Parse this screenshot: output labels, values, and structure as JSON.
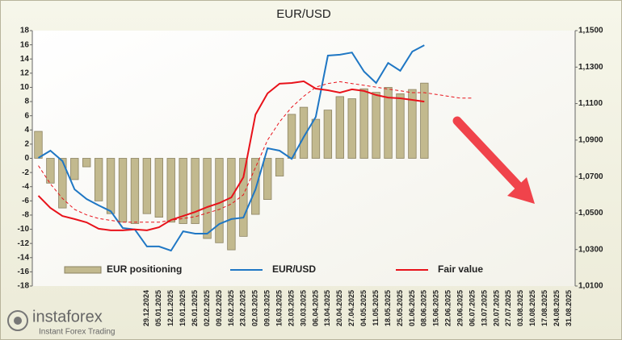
{
  "chart_data": {
    "type": "bar",
    "title": "EUR/USD",
    "categories": [
      null,
      null,
      null,
      null,
      null,
      null,
      null,
      null,
      null,
      "29.12.2024",
      "05.01.2025",
      "12.01.2025",
      "19.01.2025",
      "26.01.2025",
      "02.02.2025",
      "09.02.2025",
      "16.02.2025",
      "23.02.2025",
      "02.03.2025",
      "09.03.2025",
      "16.03.2025",
      "23.03.2025",
      "30.03.2025",
      "06.04.2025",
      "13.04.2025",
      "20.04.2025",
      "27.04.2025",
      "04.05.2025",
      "11.05.2025",
      "18.05.2025",
      "25.05.2025",
      "01.06.2025",
      "08.06.2025",
      "15.06.2025",
      "22.06.2025",
      "29.06.2025",
      "06.07.2025",
      "13.07.2025",
      "20.07.2025",
      "27.07.2025",
      "03.08.2025",
      "10.08.2025",
      "17.08.2025",
      "24.08.2025",
      "31.08.2025"
    ],
    "series": [
      {
        "name": "EUR positioning",
        "type": "bar",
        "color": "#c2b98e",
        "axis": "y",
        "values": [
          3.8,
          -3.5,
          -7,
          -3,
          -1.2,
          -6,
          -7.8,
          -9,
          -9.2,
          -7.8,
          -8.3,
          -9,
          -9.2,
          -9.2,
          -11.3,
          -11.9,
          -12.9,
          -11,
          -7.9,
          -5.8,
          -2.5,
          6.2,
          7.2,
          5.5,
          6.8,
          8.7,
          8.4,
          9.8,
          9.3,
          10,
          9.1,
          9.7,
          10.6,
          null,
          null,
          null,
          null,
          null,
          null,
          null,
          null,
          null,
          null,
          null,
          null
        ]
      },
      {
        "name": "EUR/USD",
        "type": "line",
        "color": "#1f77c4",
        "axis": "y2",
        "values": [
          1.0802,
          1.0842,
          1.0785,
          1.063,
          1.0577,
          1.0542,
          1.051,
          1.0418,
          1.041,
          1.0317,
          1.0317,
          1.0294,
          1.04,
          1.0387,
          1.0387,
          1.044,
          1.0467,
          1.0475,
          1.063,
          1.0855,
          1.0842,
          1.0797,
          1.0917,
          1.1027,
          1.1363,
          1.1368,
          1.138,
          1.1275,
          1.1213,
          1.1323,
          1.128,
          1.1385,
          1.142,
          null,
          null,
          null,
          null,
          null,
          null,
          null,
          null,
          null,
          null,
          null,
          null
        ]
      },
      {
        "name": "Fair value",
        "type": "line",
        "color": "#e8121a",
        "axis": "y2",
        "values": [
          1.0595,
          1.0528,
          1.0484,
          1.0467,
          1.0449,
          1.0414,
          1.0405,
          1.0405,
          1.041,
          1.0405,
          1.0422,
          1.0462,
          1.0484,
          1.0506,
          1.0533,
          1.0555,
          1.0586,
          1.0696,
          1.104,
          1.1156,
          1.1209,
          1.1213,
          1.1222,
          1.1182,
          1.1173,
          1.116,
          1.1178,
          1.1169,
          1.1147,
          1.1133,
          1.1129,
          1.112,
          1.1111,
          null,
          null,
          null,
          null,
          null,
          null,
          null,
          null,
          null,
          null,
          null,
          null
        ]
      },
      {
        "type": "line",
        "dashed": true,
        "color": "#e8121a",
        "axis": "y2",
        "values": [
          1.076,
          1.066,
          1.058,
          1.052,
          1.049,
          1.047,
          1.046,
          1.045,
          1.045,
          1.045,
          1.045,
          1.046,
          1.047,
          1.048,
          1.05,
          1.052,
          1.055,
          1.06,
          1.075,
          1.09,
          1.1,
          1.108,
          1.114,
          1.119,
          1.121,
          1.122,
          1.121,
          1.12,
          1.119,
          1.118,
          1.117,
          1.116,
          1.116,
          1.115,
          1.114,
          1.113,
          1.113,
          null,
          null,
          null,
          null,
          null,
          null,
          null,
          null
        ]
      }
    ],
    "ylim": [
      -18,
      18
    ],
    "yticks": [
      -18,
      -16,
      -14,
      -12,
      -10,
      -8,
      -6,
      -4,
      -2,
      0,
      2,
      4,
      6,
      8,
      10,
      12,
      14,
      16,
      18
    ],
    "y2lim": [
      1.01,
      1.15
    ],
    "y2ticks": [
      {
        "value": 1.01,
        "label": "1,0100"
      },
      {
        "value": 1.03,
        "label": "1,0300"
      },
      {
        "value": 1.05,
        "label": "1,0500"
      },
      {
        "value": 1.07,
        "label": "1,0700"
      },
      {
        "value": 1.09,
        "label": "1,0900"
      },
      {
        "value": 1.11,
        "label": "1,1100"
      },
      {
        "value": 1.13,
        "label": "1,1300"
      },
      {
        "value": 1.15,
        "label": "1,1500"
      }
    ],
    "grid": false,
    "legend": "bottom",
    "watermark": {
      "name": "instaforex",
      "tagline": "Instant Forex Trading"
    }
  }
}
